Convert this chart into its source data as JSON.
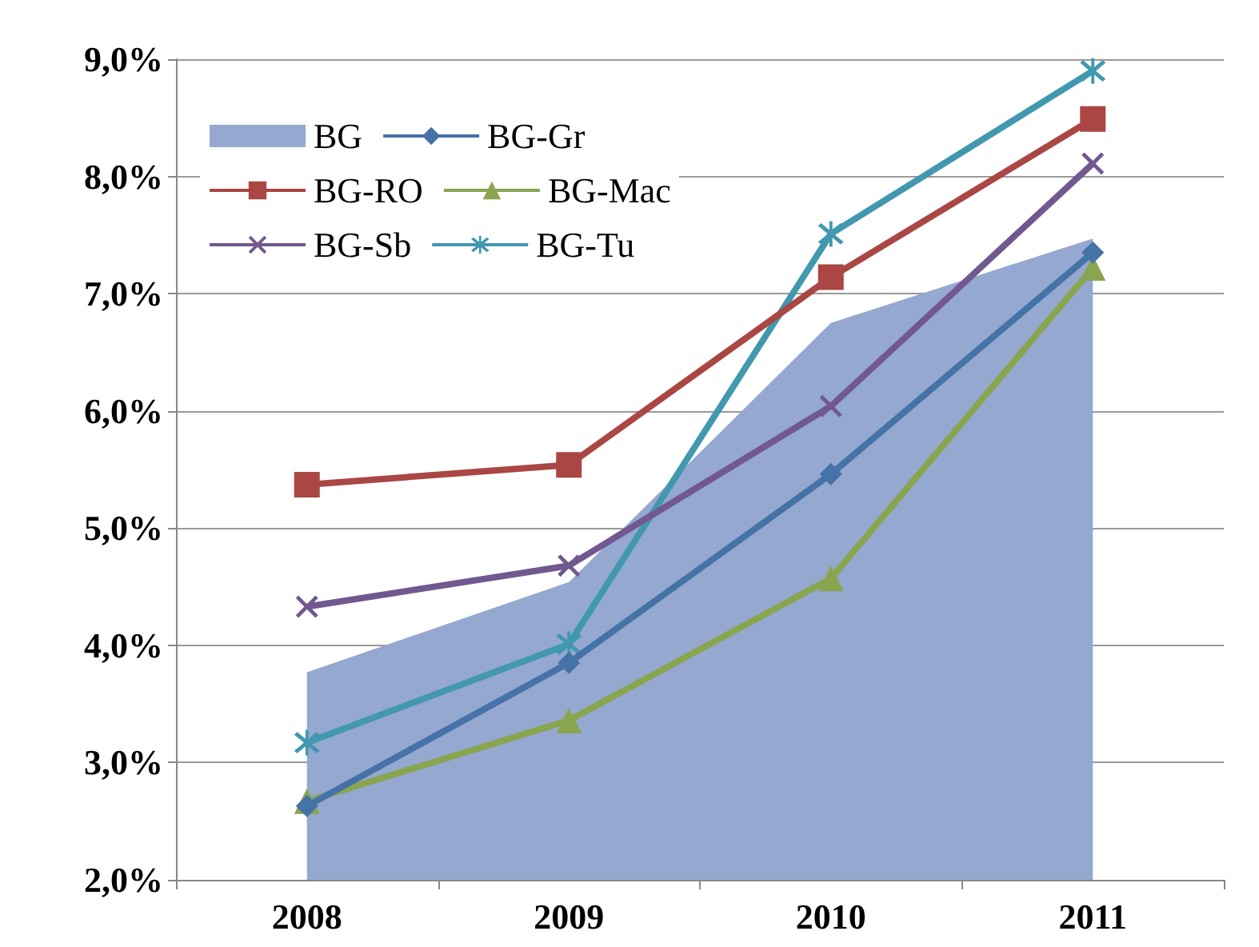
{
  "chart_data": {
    "type": "line",
    "categories": [
      "2008",
      "2009",
      "2010",
      "2011"
    ],
    "series": [
      {
        "name": "BG",
        "type": "area",
        "color": "#94a8d0",
        "values": [
          3.77,
          4.54,
          6.75,
          7.47
        ]
      },
      {
        "name": "BG-Gr",
        "color": "#4572a7",
        "marker": "diamond",
        "values": [
          2.63,
          3.85,
          5.46,
          7.35
        ]
      },
      {
        "name": "BG-RO",
        "color": "#aa4643",
        "marker": "square",
        "values": [
          5.37,
          5.54,
          7.14,
          8.49
        ]
      },
      {
        "name": "BG-Mac",
        "color": "#89a54e",
        "marker": "triangle",
        "values": [
          2.67,
          3.36,
          4.57,
          7.22
        ]
      },
      {
        "name": "BG-Sb",
        "color": "#71588f",
        "marker": "cross",
        "values": [
          4.33,
          4.68,
          6.04,
          8.11
        ]
      },
      {
        "name": "BG-Tu",
        "color": "#4198af",
        "marker": "star",
        "values": [
          3.17,
          4.01,
          7.51,
          8.9
        ]
      }
    ],
    "ylim": [
      2,
      9
    ],
    "yticks": [
      {
        "value": 2,
        "label": "2,0%"
      },
      {
        "value": 3,
        "label": "3,0%"
      },
      {
        "value": 4,
        "label": "4,0%"
      },
      {
        "value": 5,
        "label": "5,0%"
      },
      {
        "value": 6,
        "label": "6,0%"
      },
      {
        "value": 7,
        "label": "7,0%"
      },
      {
        "value": 8,
        "label": "8,0%"
      },
      {
        "value": 9,
        "label": "9,0%"
      }
    ],
    "grid": "y",
    "legend": "top left"
  }
}
